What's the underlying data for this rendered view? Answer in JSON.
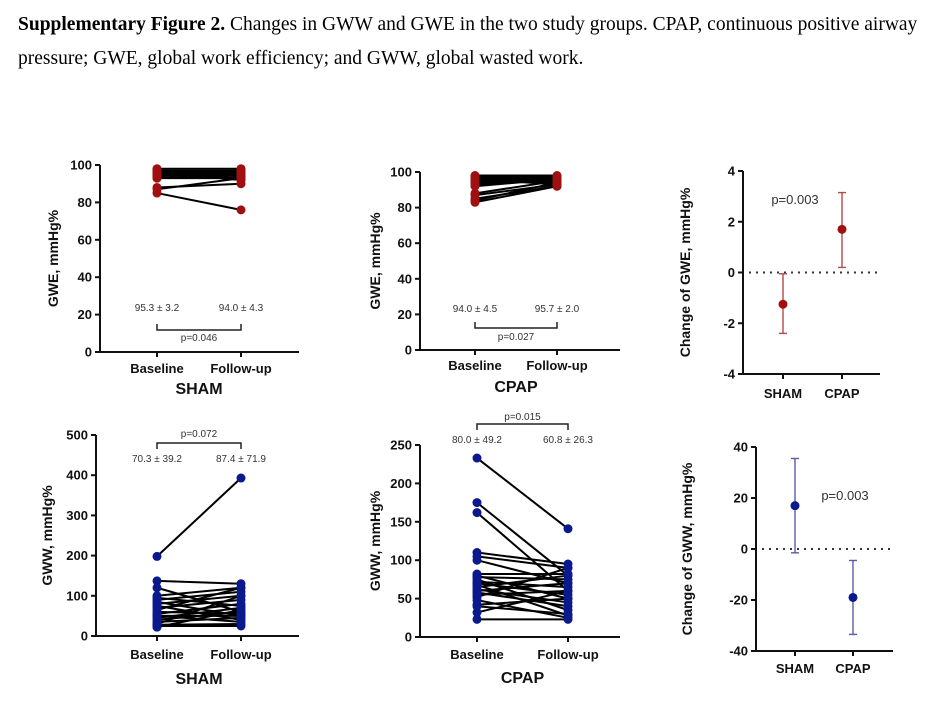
{
  "caption": {
    "label": "Supplementary Figure 2.",
    "text": " Changes in GWW and GWE in the two study groups. CPAP, continuous positive airway pressure; GWE, global work efficiency; and GWW, global wasted work."
  },
  "colors": {
    "gwe": "#a01010",
    "gwe_err": "#b24a4a",
    "gww": "#0a1a8c",
    "gww_err": "#5a5aa6",
    "axis": "#111111"
  },
  "chart_data": [
    {
      "id": "sham-gwe",
      "type": "line",
      "title": "SHAM",
      "xlabel": "SHAM",
      "ylabel": "GWE, mmHg%",
      "categories": [
        "Baseline",
        "Follow-up"
      ],
      "ylim": [
        0,
        100
      ],
      "yticks": [
        0,
        20,
        40,
        60,
        80,
        100
      ],
      "annotations": {
        "baseline": "95.3 ± 3.2",
        "followup": "94.0 ± 4.3",
        "p": "p=0.046"
      },
      "pairs": [
        [
          97,
          97
        ],
        [
          96,
          96
        ],
        [
          95,
          97
        ],
        [
          97,
          95
        ],
        [
          94,
          96
        ],
        [
          96,
          94
        ],
        [
          93,
          95
        ],
        [
          95,
          93
        ],
        [
          97,
          92
        ],
        [
          94,
          97
        ],
        [
          96,
          92
        ],
        [
          98,
          98
        ],
        [
          93,
          93
        ],
        [
          95,
          96
        ],
        [
          88,
          90
        ],
        [
          87,
          93
        ],
        [
          85,
          76
        ]
      ]
    },
    {
      "id": "cpap-gwe",
      "type": "line",
      "title": "CPAP",
      "xlabel": "CPAP",
      "ylabel": "GWE, mmHg%",
      "categories": [
        "Baseline",
        "Follow-up"
      ],
      "ylim": [
        0,
        100
      ],
      "yticks": [
        0,
        20,
        40,
        60,
        80,
        100
      ],
      "annotations": {
        "baseline": "94.0 ± 4.5",
        "followup": "95.7 ± 2.0",
        "p": "p=0.027"
      },
      "pairs": [
        [
          97,
          97
        ],
        [
          96,
          96
        ],
        [
          95,
          97
        ],
        [
          97,
          95
        ],
        [
          94,
          96
        ],
        [
          96,
          95
        ],
        [
          93,
          96
        ],
        [
          95,
          94
        ],
        [
          98,
          98
        ],
        [
          94,
          97
        ],
        [
          92,
          96
        ],
        [
          96,
          93
        ],
        [
          88,
          95
        ],
        [
          87,
          93
        ],
        [
          85,
          92
        ],
        [
          84,
          94
        ],
        [
          83,
          92
        ]
      ]
    },
    {
      "id": "change-gwe",
      "type": "scatter",
      "title": "",
      "xlabel": "",
      "ylabel": "Change of GWE, mmHg%",
      "categories": [
        "SHAM",
        "CPAP"
      ],
      "ylim": [
        -4,
        4
      ],
      "yticks": [
        -4,
        -2,
        0,
        2,
        4
      ],
      "annotation": "p=0.003",
      "points": [
        {
          "group": "SHAM",
          "mean": -1.25,
          "low": -2.4,
          "high": -0.05
        },
        {
          "group": "CPAP",
          "mean": 1.7,
          "low": 0.2,
          "high": 3.15
        }
      ]
    },
    {
      "id": "sham-gww",
      "type": "line",
      "title": "SHAM",
      "xlabel": "SHAM",
      "ylabel": "GWW, mmHg%",
      "categories": [
        "Baseline",
        "Follow-up"
      ],
      "ylim": [
        0,
        500
      ],
      "yticks": [
        0,
        100,
        200,
        300,
        400,
        500
      ],
      "annotations": {
        "baseline": "70.3 ± 39.2",
        "followup": "87.4 ± 71.9",
        "p": "p=0.072"
      },
      "pairs": [
        [
          198,
          393
        ],
        [
          137,
          130
        ],
        [
          120,
          60
        ],
        [
          100,
          120
        ],
        [
          95,
          75
        ],
        [
          90,
          110
        ],
        [
          85,
          50
        ],
        [
          80,
          100
        ],
        [
          75,
          40
        ],
        [
          70,
          90
        ],
        [
          65,
          120
        ],
        [
          60,
          55
        ],
        [
          55,
          80
        ],
        [
          50,
          35
        ],
        [
          45,
          70
        ],
        [
          40,
          60
        ],
        [
          35,
          45
        ],
        [
          30,
          100
        ],
        [
          28,
          30
        ],
        [
          25,
          25
        ],
        [
          22,
          65
        ],
        [
          50,
          50
        ]
      ]
    },
    {
      "id": "cpap-gww",
      "type": "line",
      "title": "CPAP",
      "xlabel": "CPAP",
      "ylabel": "GWW, mmHg%",
      "categories": [
        "Baseline",
        "Follow-up"
      ],
      "ylim": [
        0,
        250
      ],
      "yticks": [
        0,
        50,
        100,
        150,
        200,
        250
      ],
      "annotations": {
        "baseline": "80.0 ± 49.2",
        "followup": "60.8 ± 26.3",
        "p": "p=0.015"
      },
      "pairs": [
        [
          233,
          141
        ],
        [
          175,
          80
        ],
        [
          162,
          60
        ],
        [
          110,
          95
        ],
        [
          105,
          90
        ],
        [
          100,
          70
        ],
        [
          82,
          82
        ],
        [
          80,
          50
        ],
        [
          78,
          75
        ],
        [
          75,
          35
        ],
        [
          72,
          65
        ],
        [
          70,
          55
        ],
        [
          68,
          28
        ],
        [
          65,
          80
        ],
        [
          62,
          45
        ],
        [
          60,
          70
        ],
        [
          58,
          40
        ],
        [
          55,
          60
        ],
        [
          52,
          90
        ],
        [
          42,
          50
        ],
        [
          40,
          30
        ],
        [
          32,
          60
        ],
        [
          23,
          23
        ],
        [
          48,
          25
        ]
      ]
    },
    {
      "id": "change-gww",
      "type": "scatter",
      "title": "",
      "xlabel": "",
      "ylabel": "Change of GWW, mmHg%",
      "categories": [
        "SHAM",
        "CPAP"
      ],
      "ylim": [
        -40,
        40
      ],
      "yticks": [
        -40,
        -20,
        0,
        20,
        40
      ],
      "annotation": "p=0.003",
      "points": [
        {
          "group": "SHAM",
          "mean": 17,
          "low": -1.5,
          "high": 35.5
        },
        {
          "group": "CPAP",
          "mean": -19,
          "low": -33.5,
          "high": -4.5
        }
      ]
    }
  ]
}
